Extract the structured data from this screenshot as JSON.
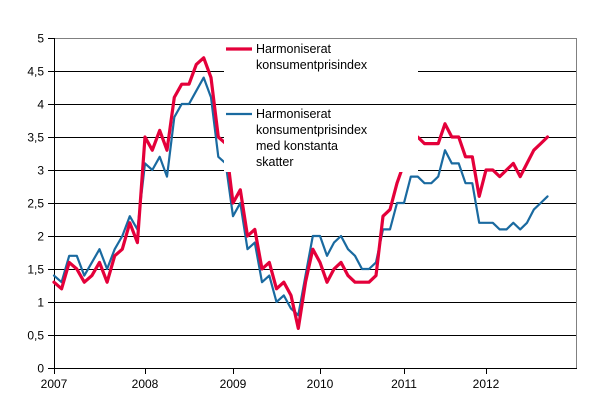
{
  "chart_data": {
    "type": "line",
    "title": "",
    "xlabel": "",
    "ylabel": "",
    "ylim": [
      0,
      5
    ],
    "yticks": [
      "0",
      "0,5",
      "1",
      "1,5",
      "2",
      "2,5",
      "3",
      "3,5",
      "4",
      "4,5",
      "5"
    ],
    "xticks": [
      "2007",
      "2008",
      "2009",
      "2010",
      "2011",
      "2012"
    ],
    "x_start": "2007-01",
    "x_end": "2012-11",
    "grid": true,
    "legend_position": "inside-top",
    "series": [
      {
        "name": "Harmoniserat konsumentprisindex",
        "color": "#e4003a",
        "width": 3.2,
        "values": [
          1.3,
          1.2,
          1.6,
          1.5,
          1.3,
          1.4,
          1.6,
          1.3,
          1.7,
          1.8,
          2.2,
          1.9,
          3.5,
          3.3,
          3.6,
          3.3,
          4.1,
          4.3,
          4.3,
          4.6,
          4.7,
          4.4,
          3.5,
          3.4,
          2.5,
          2.7,
          2.0,
          2.1,
          1.5,
          1.6,
          1.2,
          1.3,
          1.1,
          0.6,
          1.3,
          1.8,
          1.6,
          1.3,
          1.5,
          1.6,
          1.4,
          1.3,
          1.3,
          1.3,
          1.4,
          2.3,
          2.4,
          2.8,
          3.1,
          3.5,
          3.5,
          3.4,
          3.4,
          3.4,
          3.7,
          3.5,
          3.5,
          3.2,
          3.2,
          2.6,
          3.0,
          3.0,
          2.9,
          3.0,
          3.1,
          2.9,
          3.1,
          3.3,
          3.4,
          3.5
        ]
      },
      {
        "name": "Harmoniserat konsumentprisindex med konstanta skatter",
        "color": "#1a6aa0",
        "width": 2.2,
        "values": [
          1.4,
          1.3,
          1.7,
          1.7,
          1.4,
          1.6,
          1.8,
          1.5,
          1.8,
          2.0,
          2.3,
          2.1,
          3.1,
          3.0,
          3.2,
          2.9,
          3.8,
          4.0,
          4.0,
          4.2,
          4.4,
          4.1,
          3.2,
          3.1,
          2.3,
          2.5,
          1.8,
          1.9,
          1.3,
          1.4,
          1.0,
          1.1,
          0.9,
          0.8,
          1.4,
          2.0,
          2.0,
          1.7,
          1.9,
          2.0,
          1.8,
          1.7,
          1.5,
          1.5,
          1.6,
          2.1,
          2.1,
          2.5,
          2.5,
          2.9,
          2.9,
          2.8,
          2.8,
          2.9,
          3.3,
          3.1,
          3.1,
          2.8,
          2.8,
          2.2,
          2.2,
          2.2,
          2.1,
          2.1,
          2.2,
          2.1,
          2.2,
          2.4,
          2.5,
          2.6
        ]
      }
    ]
  },
  "legend": {
    "items": [
      {
        "lines": [
          "Harmoniserat",
          "konsumentprisindex"
        ],
        "color": "#e4003a"
      },
      {
        "lines": [
          "Harmoniserat",
          "konsumentprisindex",
          "med konstanta",
          "skatter"
        ],
        "color": "#1a6aa0"
      }
    ]
  },
  "colors": {
    "grid": "#000000",
    "frame": "#808080",
    "axis": "#000000"
  }
}
